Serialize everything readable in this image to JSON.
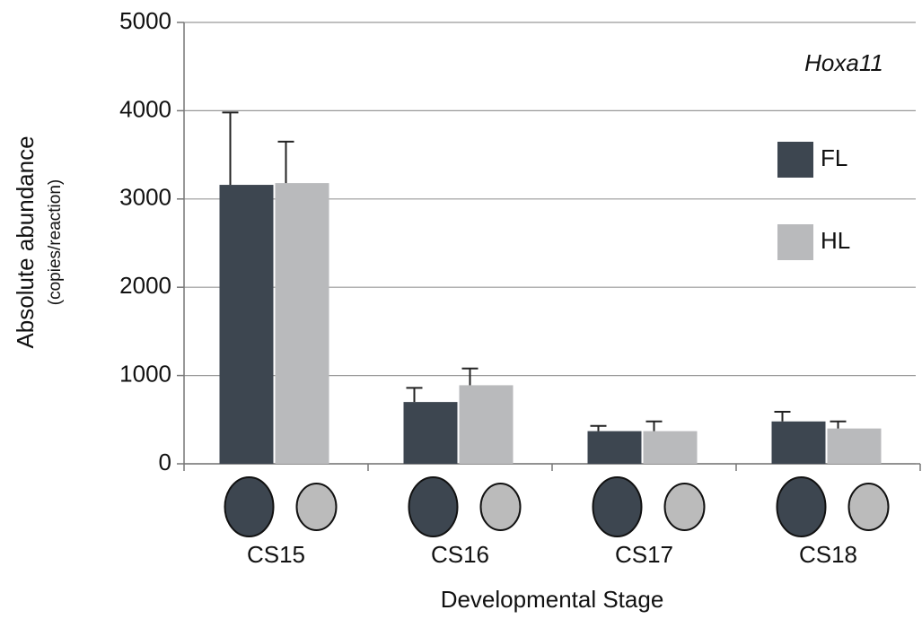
{
  "chart_data": {
    "type": "bar",
    "title": "Hoxa11",
    "y_label": "Absolute abundance",
    "y_sublabel": "(copies/reaction)",
    "x_label": "Developmental Stage",
    "categories": [
      "CS15",
      "CS16",
      "CS17",
      "CS18"
    ],
    "series": [
      {
        "name": "FL",
        "color": "#3d4650",
        "values": [
          3160,
          700,
          370,
          480
        ],
        "errors": [
          820,
          160,
          60,
          110
        ]
      },
      {
        "name": "HL",
        "color": "#b9babc",
        "values": [
          3180,
          890,
          370,
          400
        ],
        "errors": [
          470,
          190,
          110,
          80
        ]
      }
    ],
    "ylim": [
      0,
      5000
    ],
    "yticks": [
      0,
      1000,
      2000,
      3000,
      4000,
      5000
    ],
    "grid": true
  }
}
